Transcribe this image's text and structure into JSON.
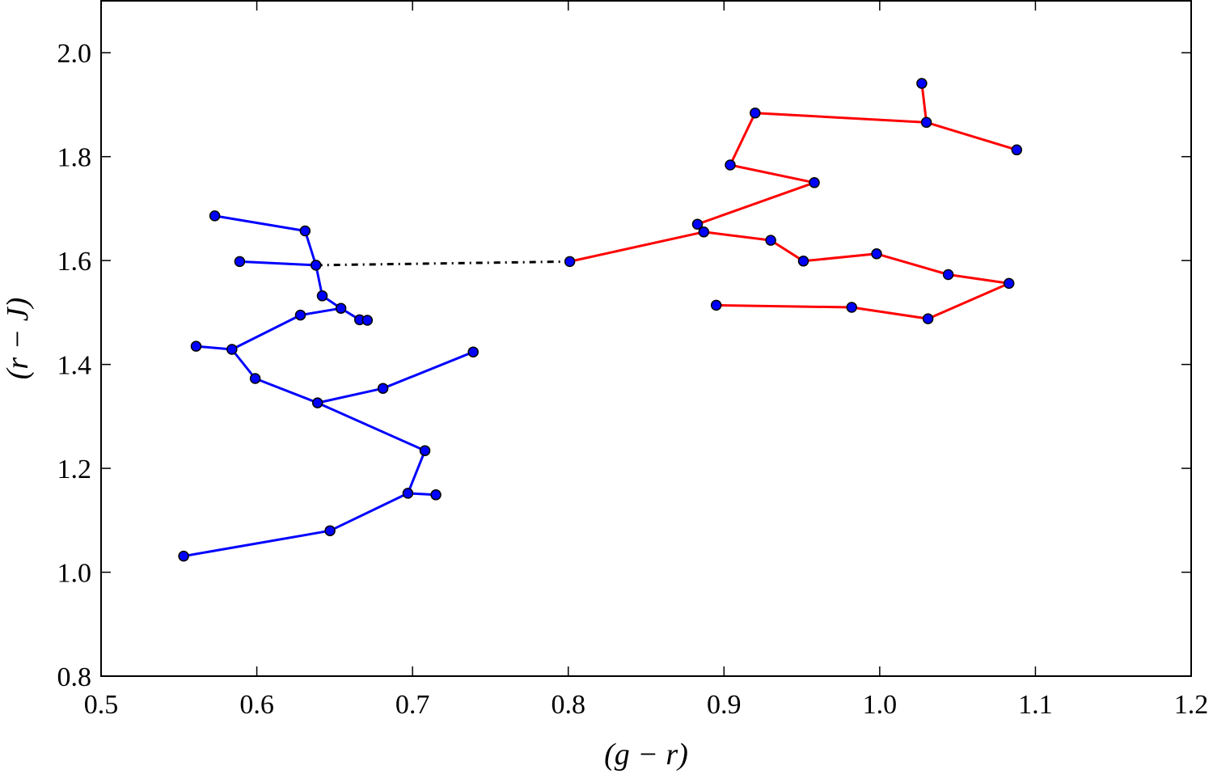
{
  "chart_data": {
    "type": "line",
    "xlabel": "(g − r)",
    "ylabel": "(r − J)",
    "xlim": [
      0.5,
      1.2
    ],
    "ylim": [
      0.8,
      2.1
    ],
    "x_ticks": [
      "0.5",
      "0.6",
      "0.7",
      "0.8",
      "0.9",
      "1.0",
      "1.1",
      "1.2"
    ],
    "y_ticks": [
      "0.8",
      "1.0",
      "1.2",
      "1.4",
      "1.6",
      "1.8",
      "2.0"
    ],
    "grid": false,
    "series": [
      {
        "color": "#0000ff",
        "marker_color": "#0000ff",
        "points": [
          [
            0.573,
            1.686
          ],
          [
            0.631,
            1.657
          ],
          [
            0.638,
            1.591
          ],
          [
            0.589,
            1.598
          ],
          [
            0.638,
            1.591
          ],
          [
            0.642,
            1.532
          ],
          [
            0.654,
            1.508
          ],
          [
            0.628,
            1.495
          ],
          [
            0.584,
            1.429
          ],
          [
            0.561,
            1.435
          ],
          [
            0.584,
            1.429
          ],
          [
            0.599,
            1.373
          ],
          [
            0.639,
            1.326
          ],
          [
            0.681,
            1.354
          ],
          [
            0.739,
            1.424
          ],
          [
            0.681,
            1.354
          ],
          [
            0.639,
            1.326
          ],
          [
            0.708,
            1.234
          ],
          [
            0.697,
            1.152
          ],
          [
            0.715,
            1.149
          ],
          [
            0.697,
            1.152
          ],
          [
            0.647,
            1.08
          ],
          [
            0.553,
            1.031
          ]
        ],
        "extra_points": [
          [
            0.666,
            1.486
          ],
          [
            0.671,
            1.485
          ]
        ],
        "extra_lines": [
          [
            [
              0.654,
              1.508
            ],
            [
              0.666,
              1.486
            ],
            [
              0.671,
              1.485
            ]
          ]
        ]
      },
      {
        "color": "#ff0000",
        "marker_color": "#0000ff",
        "points": [
          [
            0.801,
            1.598
          ],
          [
            0.887,
            1.655
          ],
          [
            0.883,
            1.67
          ],
          [
            0.958,
            1.75
          ],
          [
            0.904,
            1.784
          ],
          [
            0.92,
            1.884
          ],
          [
            1.03,
            1.866
          ],
          [
            1.027,
            1.941
          ],
          [
            1.03,
            1.866
          ],
          [
            1.088,
            1.813
          ]
        ],
        "extra_points": [],
        "extra_lines": [
          [
            [
              0.887,
              1.655
            ],
            [
              0.93,
              1.639
            ],
            [
              0.951,
              1.599
            ],
            [
              0.998,
              1.613
            ],
            [
              1.044,
              1.573
            ],
            [
              1.083,
              1.556
            ],
            [
              1.031,
              1.488
            ],
            [
              0.982,
              1.51
            ],
            [
              0.895,
              1.514
            ]
          ]
        ]
      }
    ],
    "connector": {
      "style": "dash-dot",
      "color": "#000000",
      "points": [
        [
          0.638,
          1.591
        ],
        [
          0.801,
          1.598
        ]
      ]
    }
  }
}
